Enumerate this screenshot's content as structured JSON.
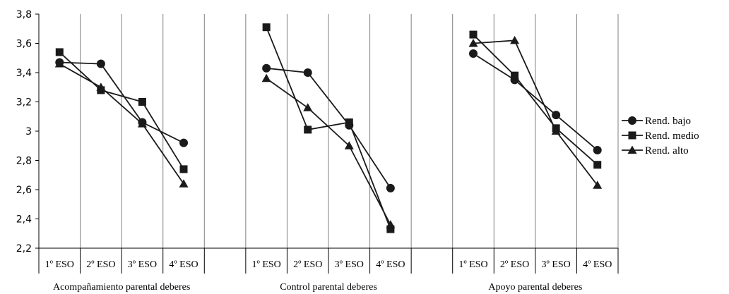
{
  "chart_data": {
    "type": "line",
    "ylim": [
      2.2,
      3.8
    ],
    "y_ticks": [
      "3,8",
      "3,6",
      "3,4",
      "3,2",
      "3",
      "2,8",
      "2,6",
      "2,4",
      "2,2"
    ],
    "categories": [
      "1º ESO",
      "2º ESO",
      "3º ESO",
      "4º ESO"
    ],
    "groups": [
      {
        "name": "Acompañamiento parental deberes",
        "series": [
          {
            "name": "Rend. bajo",
            "values": [
              3.47,
              3.46,
              3.06,
              2.92
            ]
          },
          {
            "name": "Rend. medio",
            "values": [
              3.54,
              3.28,
              3.2,
              2.74
            ]
          },
          {
            "name": "Rend. alto",
            "values": [
              3.46,
              3.3,
              3.05,
              2.64
            ]
          }
        ]
      },
      {
        "name": "Control parental deberes",
        "series": [
          {
            "name": "Rend. bajo",
            "values": [
              3.43,
              3.4,
              3.04,
              2.61
            ]
          },
          {
            "name": "Rend. medio",
            "values": [
              3.71,
              3.01,
              3.06,
              2.33
            ]
          },
          {
            "name": "Rend. alto",
            "values": [
              3.36,
              3.16,
              2.9,
              2.36
            ]
          }
        ]
      },
      {
        "name": "Apoyo parental deberes",
        "series": [
          {
            "name": "Rend. bajo",
            "values": [
              3.53,
              3.35,
              3.11,
              2.87
            ]
          },
          {
            "name": "Rend. medio",
            "values": [
              3.66,
              3.38,
              3.02,
              2.77
            ]
          },
          {
            "name": "Rend. alto",
            "values": [
              3.6,
              3.62,
              3.0,
              2.63
            ]
          }
        ]
      }
    ],
    "legend": {
      "position": "right",
      "entries": [
        {
          "label": "Rend. bajo",
          "marker": "circle"
        },
        {
          "label": "Rend. medio",
          "marker": "square"
        },
        {
          "label": "Rend. alto",
          "marker": "triangle"
        }
      ]
    },
    "colors": {
      "line": "#1a1a1a",
      "grid": "#808080",
      "axis": "#000000"
    }
  }
}
